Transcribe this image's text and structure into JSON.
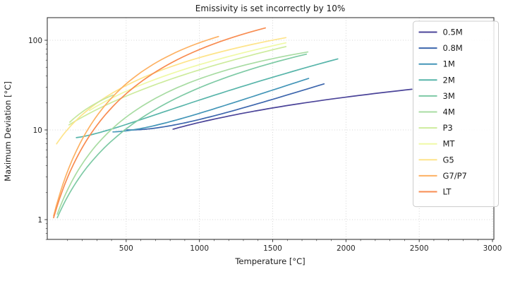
{
  "chart_data": {
    "type": "line",
    "title": "Emissivity is set incorrectly by 10%",
    "xlabel": "Temperature [°C]",
    "ylabel": "Maximum Deviation [°C]",
    "x_axis": {
      "scale": "linear",
      "min": -40,
      "max": 3010,
      "ticks": [
        500,
        1000,
        1500,
        2000,
        2500,
        3000
      ]
    },
    "y_axis": {
      "scale": "log",
      "min": 0.6,
      "max": 178,
      "ticks": [
        1,
        10,
        100
      ]
    },
    "grid": "dotted",
    "legend_position": "upper right",
    "series": [
      {
        "label": "0.5M",
        "color": "#4b4499",
        "in_legend": true,
        "points": [
          [
            820,
            10.2
          ],
          [
            1600,
            18.7
          ],
          [
            2450,
            28.4
          ]
        ]
      },
      {
        "label": "0.8M",
        "color": "#3d66ad",
        "in_legend": true,
        "points": [
          [
            505,
            10.0
          ],
          [
            1010,
            13.2
          ],
          [
            1850,
            32.6
          ]
        ]
      },
      {
        "label": "1M",
        "color": "#4496b8",
        "in_legend": true,
        "points": [
          [
            410,
            9.5
          ],
          [
            1010,
            15.5
          ],
          [
            1745,
            37.5
          ]
        ]
      },
      {
        "label": "2M",
        "color": "#58b5aa",
        "in_legend": true,
        "points": [
          [
            160,
            8.2
          ],
          [
            1010,
            21.8
          ],
          [
            1944,
            62
          ]
        ]
      },
      {
        "label": "3M",
        "color": "#7ecaa5",
        "in_legend": true,
        "points": [
          [
            30,
            1.05
          ],
          [
            1010,
            30.0
          ],
          [
            1730,
            70
          ]
        ]
      },
      {
        "label": "4M",
        "color": "#a8dca3",
        "in_legend": true,
        "points": [
          [
            30,
            1.15
          ],
          [
            1010,
            37.6
          ],
          [
            1740,
            74
          ]
        ]
      },
      {
        "label": "P3",
        "color": "#cdeb9d",
        "in_legend": true,
        "points": [
          [
            110,
            11.4
          ],
          [
            1010,
            47.3
          ],
          [
            1590,
            85
          ]
        ]
      },
      {
        "label": "MT",
        "color": "#eff9a6",
        "in_legend": true,
        "points": [
          [
            250,
            16.5
          ],
          [
            1010,
            54.0
          ],
          [
            1590,
            93.5
          ]
        ]
      },
      {
        "label": "G5",
        "color": "#fee48b",
        "in_legend": true,
        "points": [
          [
            25,
            7.0
          ],
          [
            1010,
            64.7
          ],
          [
            1590,
            107
          ]
        ]
      },
      {
        "label": "G7/P7",
        "color": "#fdb163",
        "in_legend": true,
        "points": [
          [
            5,
            1.1
          ],
          [
            1010,
            95.0
          ],
          [
            1130,
            110
          ]
        ]
      },
      {
        "label": "LT",
        "color": "#f88c51",
        "in_legend": true,
        "points": [
          [
            5,
            1.05
          ],
          [
            1010,
            80.0
          ],
          [
            1450,
            137
          ]
        ]
      },
      {
        "label": "",
        "color": "#c6e79e",
        "in_legend": false,
        "points": [
          [
            115,
            12.2
          ],
          [
            250,
            18.0
          ],
          [
            410,
            24.5
          ]
        ]
      }
    ]
  }
}
